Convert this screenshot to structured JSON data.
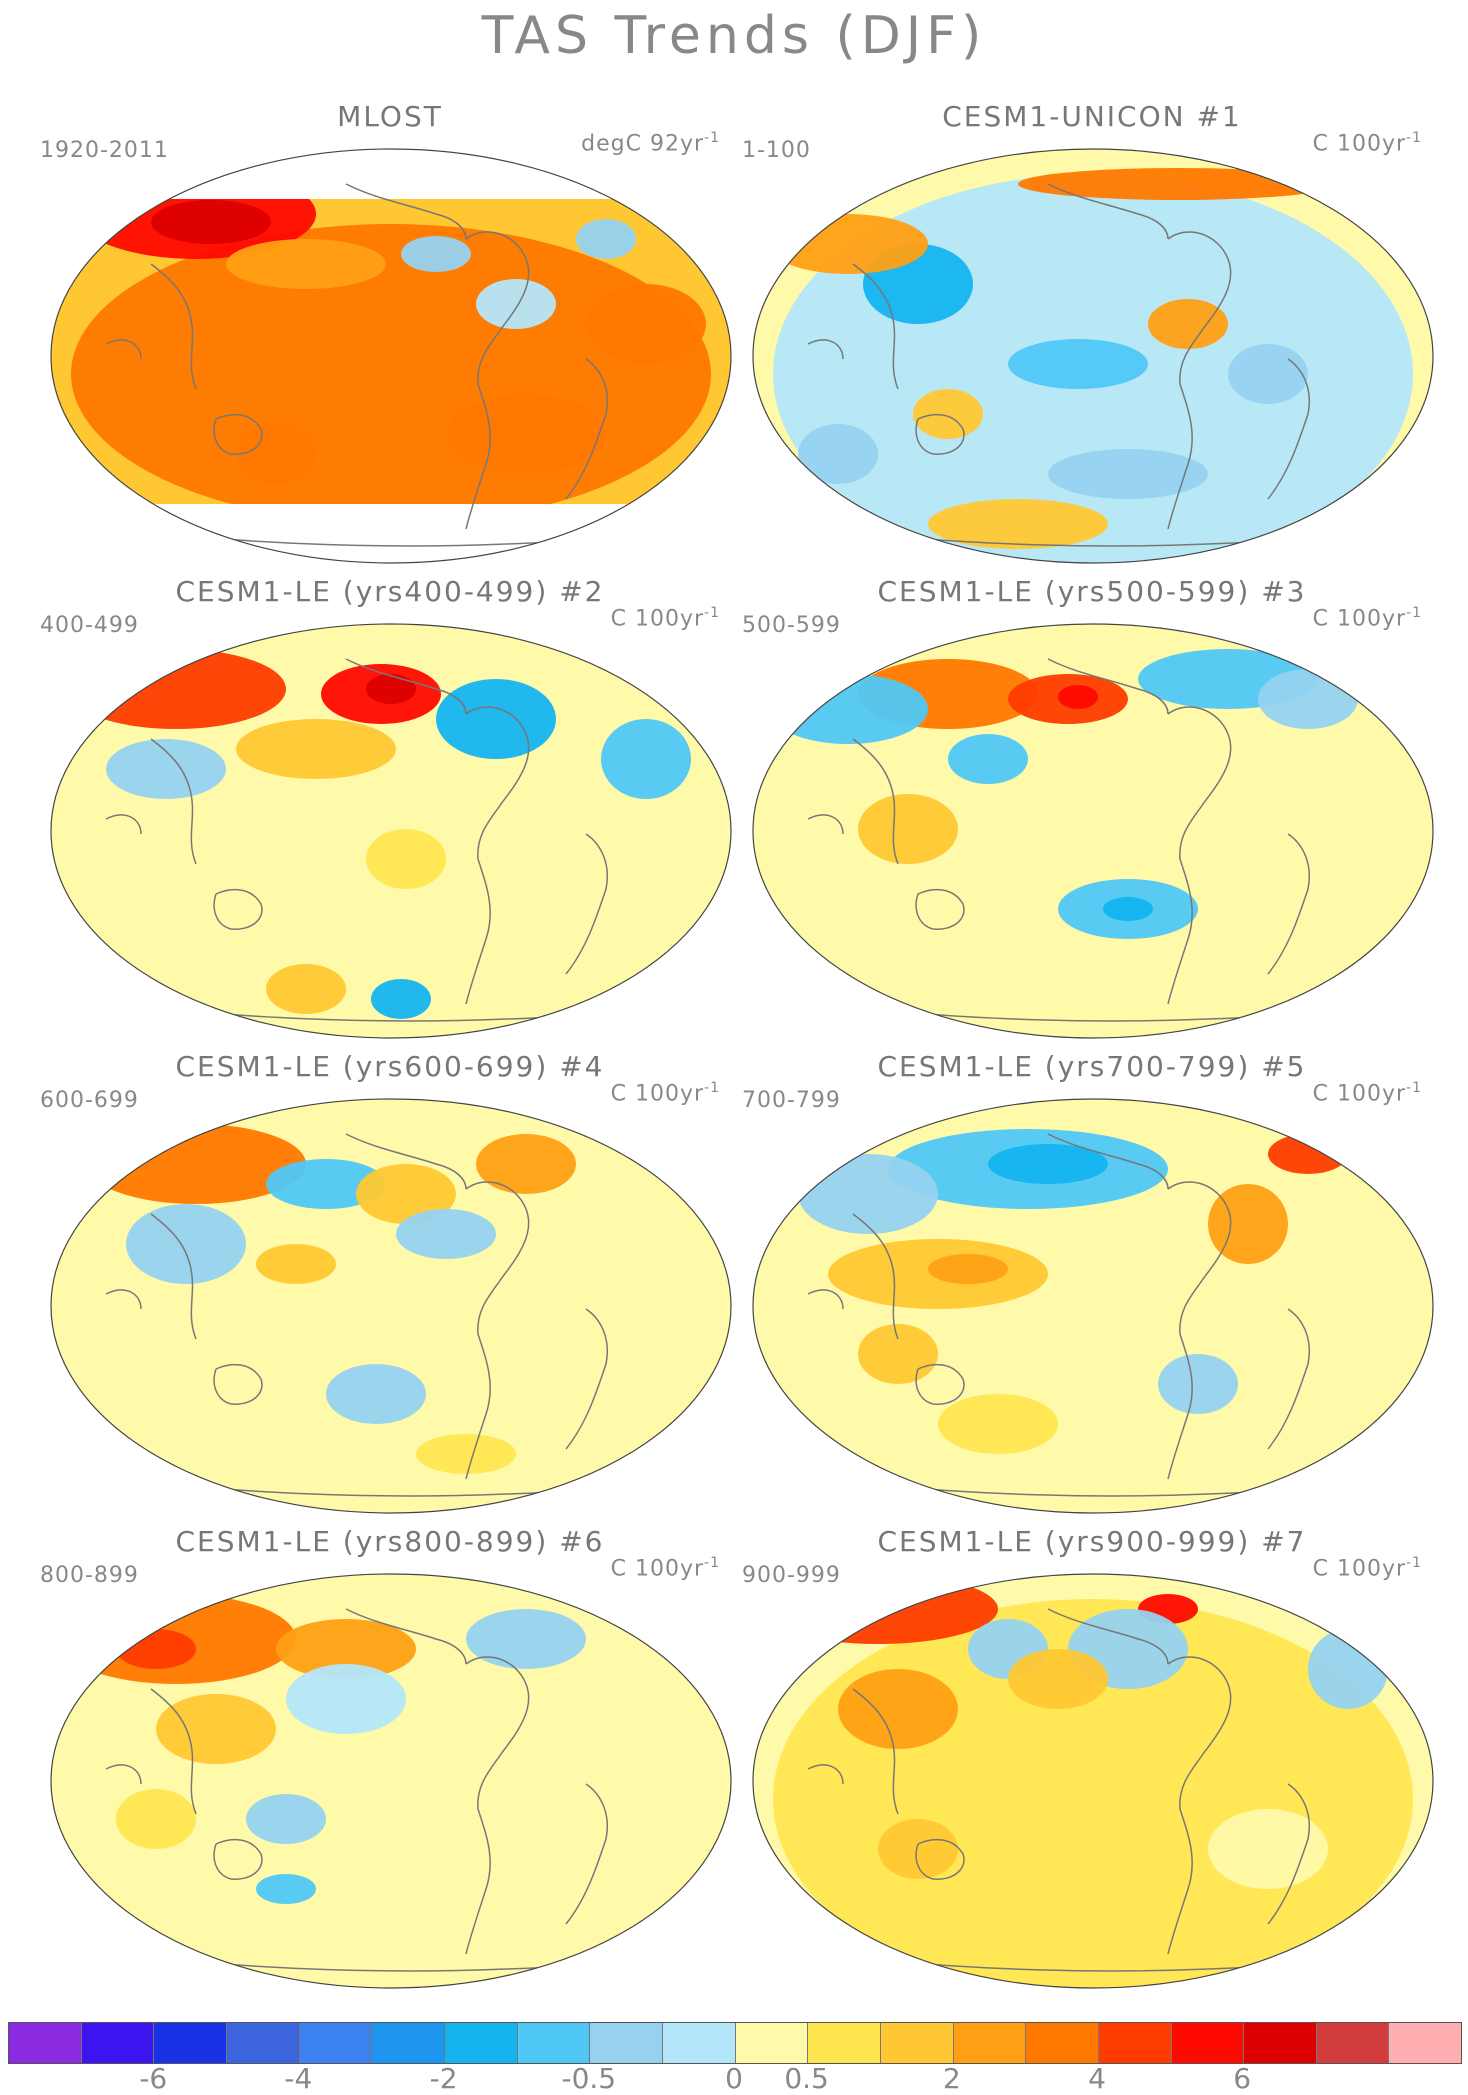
{
  "title": "TAS Trends (DJF)",
  "panels": [
    {
      "title": "MLOST",
      "number": "",
      "period": "1920-2011",
      "units_base": "degC 92yr",
      "units_exp": "-1",
      "style": "obs"
    },
    {
      "title": "CESM1-UNICON",
      "number": "#1",
      "period": "1-100",
      "units_base": "C 100yr",
      "units_exp": "-1",
      "style": "a"
    },
    {
      "title": "CESM1-LE (yrs400-499)",
      "number": "#2",
      "period": "400-499",
      "units_base": "C 100yr",
      "units_exp": "-1",
      "style": "b"
    },
    {
      "title": "CESM1-LE (yrs500-599)",
      "number": "#3",
      "period": "500-599",
      "units_base": "C 100yr",
      "units_exp": "-1",
      "style": "c"
    },
    {
      "title": "CESM1-LE (yrs600-699)",
      "number": "#4",
      "period": "600-699",
      "units_base": "C 100yr",
      "units_exp": "-1",
      "style": "d"
    },
    {
      "title": "CESM1-LE (yrs700-799)",
      "number": "#5",
      "period": "700-799",
      "units_base": "C 100yr",
      "units_exp": "-1",
      "style": "e"
    },
    {
      "title": "CESM1-LE (yrs800-899)",
      "number": "#6",
      "period": "800-899",
      "units_base": "C 100yr",
      "units_exp": "-1",
      "style": "f"
    },
    {
      "title": "CESM1-LE (yrs900-999)",
      "number": "#7",
      "period": "900-999",
      "units_base": "C 100yr",
      "units_exp": "-1",
      "style": "g"
    }
  ],
  "colorbar": {
    "colors": [
      "#8a2be2",
      "#3c14f0",
      "#1a32e6",
      "#3c64dc",
      "#3c82f0",
      "#1e96f0",
      "#14b4f0",
      "#50c8f5",
      "#96d2f0",
      "#b4e6fa",
      "#fffaaa",
      "#ffe650",
      "#ffc832",
      "#ffa014",
      "#ff7800",
      "#ff3c00",
      "#ff0a00",
      "#dc0000",
      "#d23c3c",
      "#ffafaf"
    ],
    "labels": [
      "-6",
      "-4",
      "-2",
      "-0.5",
      "0",
      "0.5",
      "2",
      "4",
      "6"
    ],
    "label_boundaries": [
      2,
      4,
      6,
      8,
      10,
      11,
      13,
      15,
      17
    ]
  }
}
